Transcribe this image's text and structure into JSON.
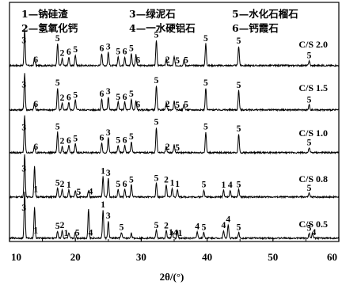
{
  "chart_data": {
    "type": "line",
    "title": "",
    "xlabel": "2θ/(°)",
    "ylabel": "",
    "xlim": [
      10,
      60
    ],
    "xticks": [
      "10",
      "20",
      "30",
      "40",
      "50",
      "60"
    ],
    "grid": false,
    "legend": {
      "placement": "top",
      "entries": [
        {
          "id": "1",
          "text": "1—钠硅渣"
        },
        {
          "id": "2",
          "text": "2—氢氧化钙"
        },
        {
          "id": "3",
          "text": "3—绿泥石"
        },
        {
          "id": "4",
          "text": "4—一水硬铝石"
        },
        {
          "id": "5",
          "text": "5—水化石榴石"
        },
        {
          "id": "6",
          "text": "6—钙霞石"
        }
      ]
    },
    "series": [
      {
        "name": "C/S 2.0",
        "peaks": [
          {
            "x": 12.3,
            "h": 0.75
          },
          {
            "x": 13.8,
            "h": 0.16
          },
          {
            "x": 17.3,
            "h": 0.45
          },
          {
            "x": 18.0,
            "h": 0.15
          },
          {
            "x": 19.0,
            "h": 0.17
          },
          {
            "x": 20.0,
            "h": 0.22
          },
          {
            "x": 24.0,
            "h": 0.25
          },
          {
            "x": 25.0,
            "h": 0.28
          },
          {
            "x": 26.5,
            "h": 0.18
          },
          {
            "x": 27.5,
            "h": 0.18
          },
          {
            "x": 28.5,
            "h": 0.25
          },
          {
            "x": 29.2,
            "h": 0.22
          },
          {
            "x": 32.3,
            "h": 0.52
          },
          {
            "x": 33.8,
            "h": 0.14
          },
          {
            "x": 35.0,
            "h": 0.18
          },
          {
            "x": 36.5,
            "h": 0.12
          },
          {
            "x": 39.8,
            "h": 0.45
          },
          {
            "x": 44.8,
            "h": 0.4
          },
          {
            "x": 55.5,
            "h": 0.1
          }
        ],
        "labels": [
          {
            "x": 12.2,
            "t": "3"
          },
          {
            "x": 14.0,
            "t": "6"
          },
          {
            "x": 17.3,
            "t": "5"
          },
          {
            "x": 18.0,
            "t": "2"
          },
          {
            "x": 19.0,
            "t": "6"
          },
          {
            "x": 20.0,
            "t": "5"
          },
          {
            "x": 24.0,
            "t": "6"
          },
          {
            "x": 25.0,
            "t": "3"
          },
          {
            "x": 26.5,
            "t": "5"
          },
          {
            "x": 27.5,
            "t": "6"
          },
          {
            "x": 28.5,
            "t": "5"
          },
          {
            "x": 29.5,
            "t": "6"
          },
          {
            "x": 32.3,
            "t": "5"
          },
          {
            "x": 34.0,
            "t": "2"
          },
          {
            "x": 35.5,
            "t": "5"
          },
          {
            "x": 36.8,
            "t": "5"
          },
          {
            "x": 39.8,
            "t": "5"
          },
          {
            "x": 44.8,
            "t": "5"
          },
          {
            "x": 55.5,
            "t": "5"
          }
        ]
      },
      {
        "name": "C/S 1.5",
        "peaks": [
          {
            "x": 12.3,
            "h": 0.75
          },
          {
            "x": 13.8,
            "h": 0.16
          },
          {
            "x": 17.3,
            "h": 0.45
          },
          {
            "x": 18.0,
            "h": 0.14
          },
          {
            "x": 19.0,
            "h": 0.15
          },
          {
            "x": 20.0,
            "h": 0.2
          },
          {
            "x": 24.0,
            "h": 0.22
          },
          {
            "x": 25.0,
            "h": 0.27
          },
          {
            "x": 26.5,
            "h": 0.16
          },
          {
            "x": 27.5,
            "h": 0.16
          },
          {
            "x": 28.5,
            "h": 0.22
          },
          {
            "x": 29.2,
            "h": 0.18
          },
          {
            "x": 32.3,
            "h": 0.5
          },
          {
            "x": 33.8,
            "h": 0.14
          },
          {
            "x": 35.0,
            "h": 0.18
          },
          {
            "x": 36.5,
            "h": 0.12
          },
          {
            "x": 39.8,
            "h": 0.45
          },
          {
            "x": 44.8,
            "h": 0.4
          },
          {
            "x": 55.5,
            "h": 0.1
          }
        ],
        "labels": [
          {
            "x": 12.2,
            "t": "3"
          },
          {
            "x": 14.0,
            "t": "6"
          },
          {
            "x": 17.3,
            "t": "5"
          },
          {
            "x": 18.0,
            "t": "2"
          },
          {
            "x": 19.0,
            "t": "6"
          },
          {
            "x": 20.0,
            "t": "5"
          },
          {
            "x": 24.0,
            "t": "6"
          },
          {
            "x": 25.0,
            "t": "3"
          },
          {
            "x": 26.5,
            "t": "5"
          },
          {
            "x": 27.5,
            "t": "6"
          },
          {
            "x": 28.5,
            "t": "5"
          },
          {
            "x": 29.5,
            "t": "6"
          },
          {
            "x": 32.3,
            "t": "5"
          },
          {
            "x": 34.0,
            "t": "2"
          },
          {
            "x": 35.5,
            "t": "5"
          },
          {
            "x": 36.8,
            "t": "5"
          },
          {
            "x": 39.8,
            "t": "5"
          },
          {
            "x": 44.8,
            "t": "5"
          },
          {
            "x": 55.5,
            "t": "5"
          }
        ]
      },
      {
        "name": "C/S 1.0",
        "peaks": [
          {
            "x": 12.3,
            "h": 0.75
          },
          {
            "x": 13.8,
            "h": 0.15
          },
          {
            "x": 17.3,
            "h": 0.42
          },
          {
            "x": 18.0,
            "h": 0.13
          },
          {
            "x": 19.0,
            "h": 0.14
          },
          {
            "x": 20.0,
            "h": 0.18
          },
          {
            "x": 24.0,
            "h": 0.2
          },
          {
            "x": 25.0,
            "h": 0.3
          },
          {
            "x": 26.5,
            "h": 0.15
          },
          {
            "x": 27.5,
            "h": 0.15
          },
          {
            "x": 28.5,
            "h": 0.22
          },
          {
            "x": 32.3,
            "h": 0.52
          },
          {
            "x": 33.8,
            "h": 0.13
          },
          {
            "x": 35.0,
            "h": 0.16
          },
          {
            "x": 39.8,
            "h": 0.42
          },
          {
            "x": 44.8,
            "h": 0.38
          },
          {
            "x": 55.5,
            "h": 0.1
          }
        ],
        "labels": [
          {
            "x": 12.2,
            "t": "3"
          },
          {
            "x": 14.0,
            "t": "6"
          },
          {
            "x": 17.3,
            "t": "5"
          },
          {
            "x": 18.0,
            "t": "2"
          },
          {
            "x": 19.0,
            "t": "6"
          },
          {
            "x": 20.0,
            "t": "5"
          },
          {
            "x": 24.0,
            "t": "6"
          },
          {
            "x": 25.0,
            "t": "3"
          },
          {
            "x": 26.5,
            "t": "5"
          },
          {
            "x": 27.5,
            "t": "6"
          },
          {
            "x": 28.5,
            "t": "5"
          },
          {
            "x": 32.3,
            "t": "5"
          },
          {
            "x": 34.0,
            "t": "2"
          },
          {
            "x": 35.5,
            "t": "5"
          },
          {
            "x": 39.8,
            "t": "5"
          },
          {
            "x": 44.8,
            "t": "5"
          },
          {
            "x": 55.5,
            "t": "5"
          }
        ]
      },
      {
        "name": "C/S 0.8",
        "peaks": [
          {
            "x": 12.3,
            "h": 0.88
          },
          {
            "x": 13.8,
            "h": 0.62
          },
          {
            "x": 17.3,
            "h": 0.18
          },
          {
            "x": 18.0,
            "h": 0.16
          },
          {
            "x": 19.0,
            "h": 0.14
          },
          {
            "x": 20.0,
            "h": 0.12
          },
          {
            "x": 22.0,
            "h": 0.14
          },
          {
            "x": 24.2,
            "h": 0.42
          },
          {
            "x": 25.0,
            "h": 0.38
          },
          {
            "x": 26.5,
            "h": 0.16
          },
          {
            "x": 27.5,
            "h": 0.16
          },
          {
            "x": 28.5,
            "h": 0.25
          },
          {
            "x": 32.3,
            "h": 0.28
          },
          {
            "x": 33.8,
            "h": 0.25
          },
          {
            "x": 34.7,
            "h": 0.18
          },
          {
            "x": 35.5,
            "h": 0.16
          },
          {
            "x": 39.5,
            "h": 0.15
          },
          {
            "x": 42.5,
            "h": 0.14
          },
          {
            "x": 43.5,
            "h": 0.14
          },
          {
            "x": 44.8,
            "h": 0.15
          },
          {
            "x": 55.5,
            "h": 0.08
          }
        ],
        "labels": [
          {
            "x": 12.2,
            "t": "3"
          },
          {
            "x": 14.0,
            "t": "1"
          },
          {
            "x": 17.3,
            "t": "5"
          },
          {
            "x": 18.0,
            "t": "2"
          },
          {
            "x": 19.0,
            "t": "1"
          },
          {
            "x": 20.5,
            "t": "5"
          },
          {
            "x": 22.3,
            "t": "4"
          },
          {
            "x": 24.2,
            "t": "1"
          },
          {
            "x": 25.0,
            "t": "3"
          },
          {
            "x": 26.5,
            "t": "5"
          },
          {
            "x": 27.5,
            "t": "6"
          },
          {
            "x": 28.5,
            "t": "5"
          },
          {
            "x": 32.3,
            "t": "5"
          },
          {
            "x": 33.8,
            "t": "2"
          },
          {
            "x": 34.7,
            "t": "1"
          },
          {
            "x": 35.5,
            "t": "1"
          },
          {
            "x": 39.5,
            "t": "5"
          },
          {
            "x": 42.5,
            "t": "1"
          },
          {
            "x": 43.5,
            "t": "4"
          },
          {
            "x": 44.8,
            "t": "5"
          },
          {
            "x": 55.5,
            "t": "5"
          }
        ]
      },
      {
        "name": "C/S 0.5",
        "peaks": [
          {
            "x": 12.3,
            "h": 0.95
          },
          {
            "x": 13.8,
            "h": 0.62
          },
          {
            "x": 17.3,
            "h": 0.14
          },
          {
            "x": 18.0,
            "h": 0.16
          },
          {
            "x": 19.0,
            "h": 0.1
          },
          {
            "x": 20.0,
            "h": 0.12
          },
          {
            "x": 22.0,
            "h": 0.6
          },
          {
            "x": 24.2,
            "h": 0.58
          },
          {
            "x": 25.0,
            "h": 0.35
          },
          {
            "x": 27.0,
            "h": 0.12
          },
          {
            "x": 28.5,
            "h": 0.1
          },
          {
            "x": 32.3,
            "h": 0.16
          },
          {
            "x": 33.8,
            "h": 0.15
          },
          {
            "x": 34.7,
            "h": 0.14
          },
          {
            "x": 35.5,
            "h": 0.14
          },
          {
            "x": 38.5,
            "h": 0.13
          },
          {
            "x": 39.5,
            "h": 0.12
          },
          {
            "x": 42.5,
            "h": 0.16
          },
          {
            "x": 43.2,
            "h": 0.28
          },
          {
            "x": 44.8,
            "h": 0.12
          },
          {
            "x": 55.5,
            "h": 0.1
          },
          {
            "x": 56.0,
            "h": 0.1
          }
        ],
        "labels": [
          {
            "x": 12.2,
            "t": "3"
          },
          {
            "x": 14.0,
            "t": "1"
          },
          {
            "x": 17.3,
            "t": "5"
          },
          {
            "x": 18.0,
            "t": "2"
          },
          {
            "x": 18.6,
            "t": "1"
          },
          {
            "x": 20.3,
            "t": "5"
          },
          {
            "x": 22.3,
            "t": "4"
          },
          {
            "x": 24.2,
            "t": "1"
          },
          {
            "x": 25.0,
            "t": "3"
          },
          {
            "x": 27.0,
            "t": "5"
          },
          {
            "x": 32.3,
            "t": "5"
          },
          {
            "x": 33.8,
            "t": "2"
          },
          {
            "x": 34.5,
            "t": "1"
          },
          {
            "x": 35.2,
            "t": "4"
          },
          {
            "x": 35.9,
            "t": "1"
          },
          {
            "x": 38.5,
            "t": "4"
          },
          {
            "x": 39.5,
            "t": "5"
          },
          {
            "x": 42.5,
            "t": "4"
          },
          {
            "x": 43.2,
            "t": "4"
          },
          {
            "x": 44.8,
            "t": "5"
          },
          {
            "x": 55.5,
            "t": "5"
          },
          {
            "x": 56.2,
            "t": "4"
          }
        ]
      }
    ]
  }
}
